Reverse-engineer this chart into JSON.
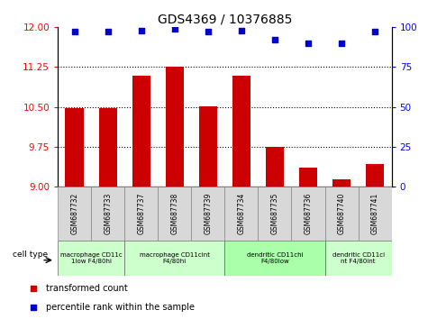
{
  "title": "GDS4369 / 10376885",
  "samples": [
    "GSM687732",
    "GSM687733",
    "GSM687737",
    "GSM687738",
    "GSM687739",
    "GSM687734",
    "GSM687735",
    "GSM687736",
    "GSM687740",
    "GSM687741"
  ],
  "bar_values": [
    10.47,
    10.48,
    11.08,
    11.25,
    10.51,
    11.08,
    9.75,
    9.35,
    9.13,
    9.43
  ],
  "dot_values": [
    97,
    97,
    98,
    99,
    97,
    98,
    92,
    90,
    90,
    97
  ],
  "ylim_left": [
    9,
    12
  ],
  "ylim_right": [
    0,
    100
  ],
  "yticks_left": [
    9,
    9.75,
    10.5,
    11.25,
    12
  ],
  "yticks_right": [
    0,
    25,
    50,
    75,
    100
  ],
  "bar_color": "#cc0000",
  "dot_color": "#0000cc",
  "dotted_line_values": [
    9.75,
    10.5,
    11.25
  ],
  "cell_type_groups": [
    {
      "label": "macrophage CD11c\n1low F4/80hi",
      "start": 0,
      "end": 2,
      "color": "#ccffcc"
    },
    {
      "label": "macrophage CD11cint\nF4/80hi",
      "start": 2,
      "end": 5,
      "color": "#ccffcc"
    },
    {
      "label": "dendritic CD11chi\nF4/80low",
      "start": 5,
      "end": 8,
      "color": "#aaffaa"
    },
    {
      "label": "dendritic CD11ci\nnt F4/80int",
      "start": 8,
      "end": 10,
      "color": "#ccffcc"
    }
  ],
  "cell_type_label": "cell type",
  "legend_bar_label": "transformed count",
  "legend_dot_label": "percentile rank within the sample",
  "bar_color_legend": "#cc0000",
  "dot_color_legend": "#0000cc"
}
